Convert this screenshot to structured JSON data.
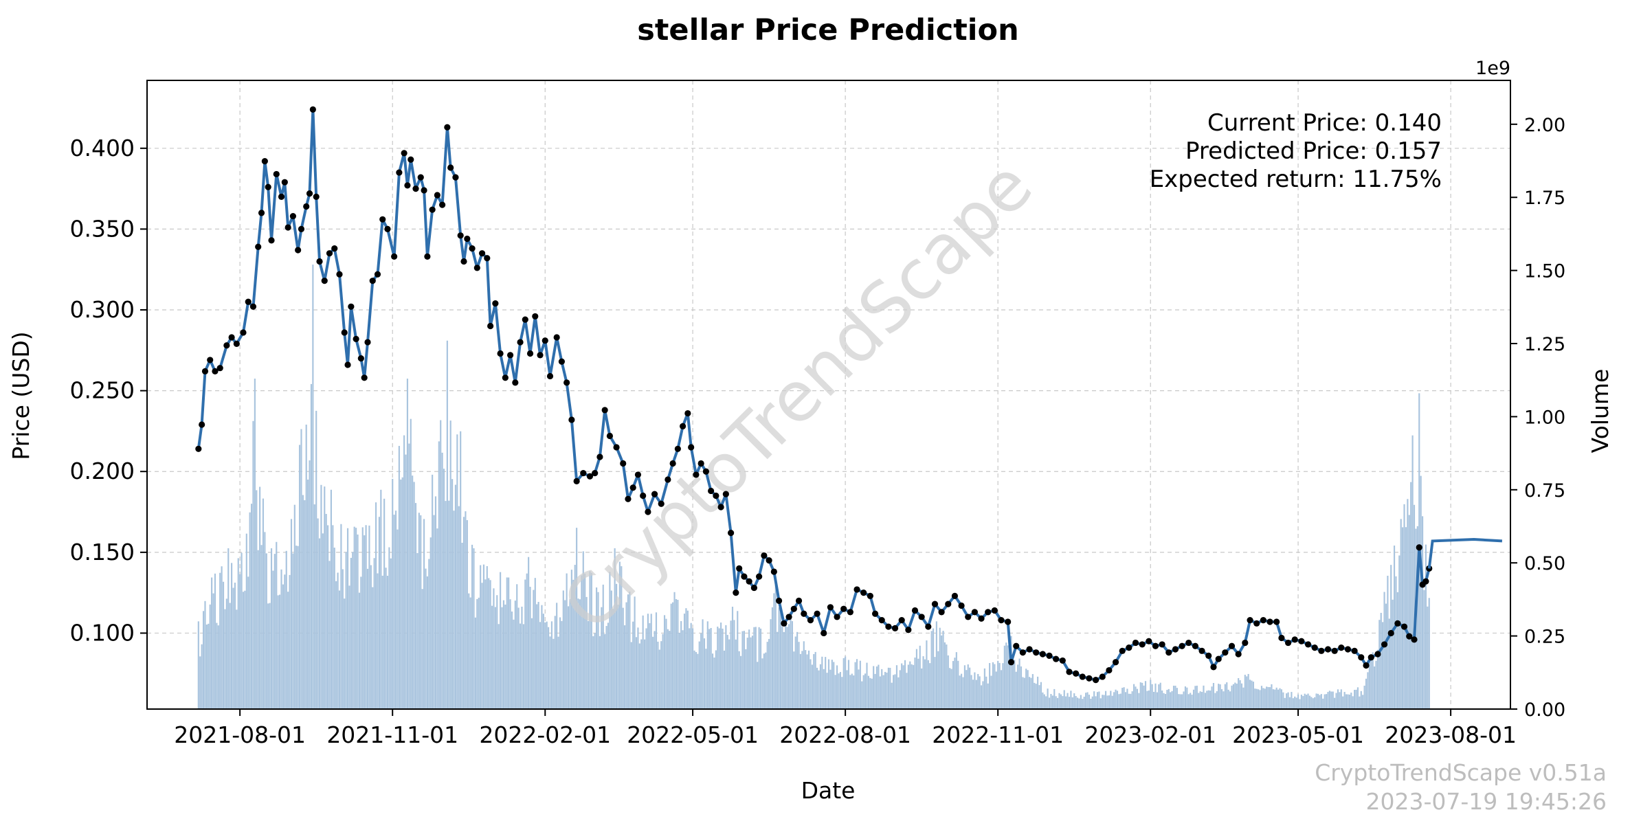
{
  "chart_data": {
    "type": "line",
    "title": "stellar Price Prediction",
    "xlabel": "Date",
    "ylabel": "Price (USD)",
    "y2label": "Volume",
    "y2_multiplier_label": "1e9",
    "grid": true,
    "xlim": [
      "2021-06-06",
      "2023-09-06"
    ],
    "ylim": [
      0.053,
      0.442
    ],
    "y2lim": [
      0,
      2.15
    ],
    "x_ticks": [
      "2021-08-01",
      "2021-11-01",
      "2022-02-01",
      "2022-05-01",
      "2022-08-01",
      "2022-11-01",
      "2023-02-01",
      "2023-05-01",
      "2023-08-01"
    ],
    "y_ticks": [
      "0.100",
      "0.150",
      "0.200",
      "0.250",
      "0.300",
      "0.350",
      "0.400"
    ],
    "y2_ticks": [
      "0.00",
      "0.25",
      "0.50",
      "0.75",
      "1.00",
      "1.25",
      "1.50",
      "1.75",
      "2.00"
    ],
    "price_series": {
      "name": "Price",
      "points": [
        [
          "2021-07-07",
          0.214
        ],
        [
          "2021-07-09",
          0.229
        ],
        [
          "2021-07-11",
          0.262
        ],
        [
          "2021-07-14",
          0.269
        ],
        [
          "2021-07-17",
          0.262
        ],
        [
          "2021-07-20",
          0.264
        ],
        [
          "2021-07-24",
          0.278
        ],
        [
          "2021-07-27",
          0.283
        ],
        [
          "2021-07-30",
          0.279
        ],
        [
          "2021-08-03",
          0.286
        ],
        [
          "2021-08-06",
          0.305
        ],
        [
          "2021-08-09",
          0.302
        ],
        [
          "2021-08-12",
          0.339
        ],
        [
          "2021-08-14",
          0.36
        ],
        [
          "2021-08-16",
          0.392
        ],
        [
          "2021-08-18",
          0.376
        ],
        [
          "2021-08-20",
          0.343
        ],
        [
          "2021-08-23",
          0.384
        ],
        [
          "2021-08-26",
          0.37
        ],
        [
          "2021-08-28",
          0.379
        ],
        [
          "2021-08-30",
          0.351
        ],
        [
          "2021-09-02",
          0.358
        ],
        [
          "2021-09-05",
          0.337
        ],
        [
          "2021-09-07",
          0.35
        ],
        [
          "2021-09-10",
          0.364
        ],
        [
          "2021-09-12",
          0.372
        ],
        [
          "2021-09-14",
          0.424
        ],
        [
          "2021-09-16",
          0.37
        ],
        [
          "2021-09-18",
          0.33
        ],
        [
          "2021-09-21",
          0.318
        ],
        [
          "2021-09-24",
          0.335
        ],
        [
          "2021-09-27",
          0.338
        ],
        [
          "2021-09-30",
          0.322
        ],
        [
          "2021-10-03",
          0.286
        ],
        [
          "2021-10-05",
          0.266
        ],
        [
          "2021-10-07",
          0.302
        ],
        [
          "2021-10-10",
          0.282
        ],
        [
          "2021-10-13",
          0.27
        ],
        [
          "2021-10-15",
          0.258
        ],
        [
          "2021-10-17",
          0.28
        ],
        [
          "2021-10-20",
          0.318
        ],
        [
          "2021-10-23",
          0.322
        ],
        [
          "2021-10-26",
          0.356
        ],
        [
          "2021-10-29",
          0.35
        ],
        [
          "2021-11-02",
          0.333
        ],
        [
          "2021-11-05",
          0.385
        ],
        [
          "2021-11-08",
          0.397
        ],
        [
          "2021-11-10",
          0.377
        ],
        [
          "2021-11-12",
          0.393
        ],
        [
          "2021-11-15",
          0.375
        ],
        [
          "2021-11-18",
          0.382
        ],
        [
          "2021-11-20",
          0.374
        ],
        [
          "2021-11-22",
          0.333
        ],
        [
          "2021-11-25",
          0.362
        ],
        [
          "2021-11-28",
          0.371
        ],
        [
          "2021-12-01",
          0.365
        ],
        [
          "2021-12-04",
          0.413
        ],
        [
          "2021-12-06",
          0.388
        ],
        [
          "2021-12-09",
          0.382
        ],
        [
          "2021-12-12",
          0.346
        ],
        [
          "2021-12-14",
          0.33
        ],
        [
          "2021-12-16",
          0.344
        ],
        [
          "2021-12-19",
          0.338
        ],
        [
          "2021-12-22",
          0.326
        ],
        [
          "2021-12-25",
          0.335
        ],
        [
          "2021-12-28",
          0.332
        ],
        [
          "2021-12-30",
          0.29
        ],
        [
          "2022-01-02",
          0.304
        ],
        [
          "2022-01-05",
          0.273
        ],
        [
          "2022-01-08",
          0.258
        ],
        [
          "2022-01-11",
          0.272
        ],
        [
          "2022-01-14",
          0.255
        ],
        [
          "2022-01-17",
          0.28
        ],
        [
          "2022-01-20",
          0.294
        ],
        [
          "2022-01-23",
          0.273
        ],
        [
          "2022-01-26",
          0.296
        ],
        [
          "2022-01-29",
          0.272
        ],
        [
          "2022-02-01",
          0.281
        ],
        [
          "2022-02-04",
          0.259
        ],
        [
          "2022-02-08",
          0.283
        ],
        [
          "2022-02-11",
          0.268
        ],
        [
          "2022-02-14",
          0.255
        ],
        [
          "2022-02-17",
          0.232
        ],
        [
          "2022-02-20",
          0.194
        ],
        [
          "2022-02-24",
          0.199
        ],
        [
          "2022-02-28",
          0.197
        ],
        [
          "2022-03-03",
          0.199
        ],
        [
          "2022-03-06",
          0.209
        ],
        [
          "2022-03-09",
          0.238
        ],
        [
          "2022-03-12",
          0.222
        ],
        [
          "2022-03-16",
          0.215
        ],
        [
          "2022-03-20",
          0.205
        ],
        [
          "2022-03-23",
          0.183
        ],
        [
          "2022-03-26",
          0.19
        ],
        [
          "2022-03-29",
          0.198
        ],
        [
          "2022-04-01",
          0.185
        ],
        [
          "2022-04-04",
          0.175
        ],
        [
          "2022-04-08",
          0.186
        ],
        [
          "2022-04-12",
          0.18
        ],
        [
          "2022-04-16",
          0.195
        ],
        [
          "2022-04-19",
          0.205
        ],
        [
          "2022-04-22",
          0.214
        ],
        [
          "2022-04-25",
          0.228
        ],
        [
          "2022-04-28",
          0.236
        ],
        [
          "2022-04-30",
          0.215
        ],
        [
          "2022-05-03",
          0.198
        ],
        [
          "2022-05-06",
          0.205
        ],
        [
          "2022-05-09",
          0.2
        ],
        [
          "2022-05-12",
          0.188
        ],
        [
          "2022-05-15",
          0.185
        ],
        [
          "2022-05-18",
          0.178
        ],
        [
          "2022-05-21",
          0.186
        ],
        [
          "2022-05-24",
          0.162
        ],
        [
          "2022-05-27",
          0.125
        ],
        [
          "2022-05-29",
          0.14
        ],
        [
          "2022-06-01",
          0.135
        ],
        [
          "2022-06-04",
          0.132
        ],
        [
          "2022-06-07",
          0.128
        ],
        [
          "2022-06-10",
          0.135
        ],
        [
          "2022-06-13",
          0.148
        ],
        [
          "2022-06-16",
          0.145
        ],
        [
          "2022-06-19",
          0.138
        ],
        [
          "2022-06-22",
          0.12
        ],
        [
          "2022-06-25",
          0.106
        ],
        [
          "2022-06-28",
          0.11
        ],
        [
          "2022-07-01",
          0.115
        ],
        [
          "2022-07-04",
          0.12
        ],
        [
          "2022-07-07",
          0.112
        ],
        [
          "2022-07-11",
          0.108
        ],
        [
          "2022-07-15",
          0.112
        ],
        [
          "2022-07-19",
          0.1
        ],
        [
          "2022-07-23",
          0.116
        ],
        [
          "2022-07-27",
          0.11
        ],
        [
          "2022-07-31",
          0.115
        ],
        [
          "2022-08-04",
          0.113
        ],
        [
          "2022-08-08",
          0.127
        ],
        [
          "2022-08-12",
          0.125
        ],
        [
          "2022-08-16",
          0.123
        ],
        [
          "2022-08-19",
          0.112
        ],
        [
          "2022-08-23",
          0.108
        ],
        [
          "2022-08-27",
          0.104
        ],
        [
          "2022-08-31",
          0.103
        ],
        [
          "2022-09-04",
          0.108
        ],
        [
          "2022-09-08",
          0.102
        ],
        [
          "2022-09-12",
          0.114
        ],
        [
          "2022-09-16",
          0.11
        ],
        [
          "2022-09-20",
          0.104
        ],
        [
          "2022-09-24",
          0.118
        ],
        [
          "2022-09-28",
          0.113
        ],
        [
          "2022-10-02",
          0.118
        ],
        [
          "2022-10-06",
          0.123
        ],
        [
          "2022-10-10",
          0.117
        ],
        [
          "2022-10-14",
          0.11
        ],
        [
          "2022-10-18",
          0.113
        ],
        [
          "2022-10-22",
          0.109
        ],
        [
          "2022-10-26",
          0.113
        ],
        [
          "2022-10-30",
          0.114
        ],
        [
          "2022-11-03",
          0.108
        ],
        [
          "2022-11-07",
          0.107
        ],
        [
          "2022-11-09",
          0.082
        ],
        [
          "2022-11-12",
          0.092
        ],
        [
          "2022-11-16",
          0.088
        ],
        [
          "2022-11-20",
          0.09
        ],
        [
          "2022-11-24",
          0.088
        ],
        [
          "2022-11-28",
          0.087
        ],
        [
          "2022-12-02",
          0.086
        ],
        [
          "2022-12-06",
          0.084
        ],
        [
          "2022-12-10",
          0.083
        ],
        [
          "2022-12-14",
          0.076
        ],
        [
          "2022-12-18",
          0.075
        ],
        [
          "2022-12-22",
          0.073
        ],
        [
          "2022-12-26",
          0.072
        ],
        [
          "2022-12-30",
          0.071
        ],
        [
          "2023-01-03",
          0.073
        ],
        [
          "2023-01-07",
          0.077
        ],
        [
          "2023-01-11",
          0.082
        ],
        [
          "2023-01-15",
          0.089
        ],
        [
          "2023-01-19",
          0.091
        ],
        [
          "2023-01-23",
          0.094
        ],
        [
          "2023-01-27",
          0.093
        ],
        [
          "2023-01-31",
          0.095
        ],
        [
          "2023-02-04",
          0.092
        ],
        [
          "2023-02-08",
          0.093
        ],
        [
          "2023-02-12",
          0.088
        ],
        [
          "2023-02-16",
          0.09
        ],
        [
          "2023-02-20",
          0.092
        ],
        [
          "2023-02-24",
          0.094
        ],
        [
          "2023-02-28",
          0.092
        ],
        [
          "2023-03-04",
          0.089
        ],
        [
          "2023-03-08",
          0.086
        ],
        [
          "2023-03-11",
          0.079
        ],
        [
          "2023-03-14",
          0.084
        ],
        [
          "2023-03-18",
          0.088
        ],
        [
          "2023-03-22",
          0.092
        ],
        [
          "2023-03-26",
          0.087
        ],
        [
          "2023-03-30",
          0.094
        ],
        [
          "2023-04-02",
          0.108
        ],
        [
          "2023-04-06",
          0.106
        ],
        [
          "2023-04-10",
          0.108
        ],
        [
          "2023-04-14",
          0.107
        ],
        [
          "2023-04-18",
          0.107
        ],
        [
          "2023-04-21",
          0.097
        ],
        [
          "2023-04-25",
          0.094
        ],
        [
          "2023-04-29",
          0.096
        ],
        [
          "2023-05-03",
          0.095
        ],
        [
          "2023-05-07",
          0.093
        ],
        [
          "2023-05-11",
          0.091
        ],
        [
          "2023-05-15",
          0.089
        ],
        [
          "2023-05-19",
          0.09
        ],
        [
          "2023-05-23",
          0.089
        ],
        [
          "2023-05-27",
          0.091
        ],
        [
          "2023-05-31",
          0.09
        ],
        [
          "2023-06-04",
          0.089
        ],
        [
          "2023-06-08",
          0.085
        ],
        [
          "2023-06-11",
          0.08
        ],
        [
          "2023-06-14",
          0.085
        ],
        [
          "2023-06-18",
          0.087
        ],
        [
          "2023-06-22",
          0.093
        ],
        [
          "2023-06-26",
          0.1
        ],
        [
          "2023-06-30",
          0.106
        ],
        [
          "2023-07-04",
          0.104
        ],
        [
          "2023-07-07",
          0.098
        ],
        [
          "2023-07-10",
          0.096
        ],
        [
          "2023-07-13",
          0.153
        ],
        [
          "2023-07-15",
          0.13
        ],
        [
          "2023-07-17",
          0.132
        ],
        [
          "2023-07-19",
          0.14
        ]
      ]
    },
    "prediction_series": {
      "name": "Prediction",
      "points": [
        [
          "2023-07-19",
          0.14
        ],
        [
          "2023-07-21",
          0.157
        ],
        [
          "2023-08-15",
          0.158
        ],
        [
          "2023-09-01",
          0.157
        ]
      ]
    },
    "volume_series": {
      "name": "Volume",
      "unit_multiplier": 1000000000,
      "points": [
        [
          "2021-07-07",
          0.3
        ],
        [
          "2021-07-15",
          0.45
        ],
        [
          "2021-07-25",
          0.55
        ],
        [
          "2021-08-05",
          0.6
        ],
        [
          "2021-08-10",
          1.13
        ],
        [
          "2021-08-15",
          0.72
        ],
        [
          "2021-08-20",
          0.55
        ],
        [
          "2021-09-01",
          0.65
        ],
        [
          "2021-09-14",
          1.52
        ],
        [
          "2021-09-16",
          1.02
        ],
        [
          "2021-09-25",
          0.75
        ],
        [
          "2021-10-10",
          0.62
        ],
        [
          "2021-10-25",
          0.75
        ],
        [
          "2021-11-05",
          0.9
        ],
        [
          "2021-11-10",
          1.13
        ],
        [
          "2021-11-20",
          0.65
        ],
        [
          "2021-12-04",
          1.26
        ],
        [
          "2021-12-12",
          0.95
        ],
        [
          "2021-12-20",
          0.55
        ],
        [
          "2022-01-10",
          0.45
        ],
        [
          "2022-01-22",
          0.52
        ],
        [
          "2022-02-05",
          0.3
        ],
        [
          "2022-02-20",
          0.62
        ],
        [
          "2022-03-05",
          0.4
        ],
        [
          "2022-03-15",
          0.55
        ],
        [
          "2022-04-01",
          0.32
        ],
        [
          "2022-04-20",
          0.4
        ],
        [
          "2022-05-10",
          0.3
        ],
        [
          "2022-05-25",
          0.35
        ],
        [
          "2022-06-10",
          0.28
        ],
        [
          "2022-06-20",
          0.45
        ],
        [
          "2022-07-10",
          0.2
        ],
        [
          "2022-08-01",
          0.18
        ],
        [
          "2022-09-01",
          0.15
        ],
        [
          "2022-09-25",
          0.3
        ],
        [
          "2022-10-20",
          0.12
        ],
        [
          "2022-11-09",
          0.25
        ],
        [
          "2022-12-01",
          0.07
        ],
        [
          "2023-01-01",
          0.06
        ],
        [
          "2023-02-01",
          0.1
        ],
        [
          "2023-03-01",
          0.08
        ],
        [
          "2023-04-01",
          0.12
        ],
        [
          "2023-05-01",
          0.05
        ],
        [
          "2023-06-10",
          0.08
        ],
        [
          "2023-07-13",
          1.08
        ],
        [
          "2023-07-19",
          0.38
        ]
      ]
    }
  },
  "annotations": {
    "current_price": "Current Price: 0.140",
    "predicted_price": "Predicted Price: 0.157",
    "expected_return": "Expected return: 11.75%"
  },
  "watermark": "CryptoTrendScape",
  "footer": {
    "version": "CryptoTrendScape v0.51a",
    "timestamp": "2023-07-19 19:45:26"
  },
  "colors": {
    "price_line": "#2f6fad",
    "marker": "#000000",
    "prediction_line": "#2f6fad",
    "volume_bars": "#a9c4de",
    "grid": "#c8c8c8",
    "watermark": "#d0d0d0",
    "footer_text": "#c0c0c0"
  }
}
